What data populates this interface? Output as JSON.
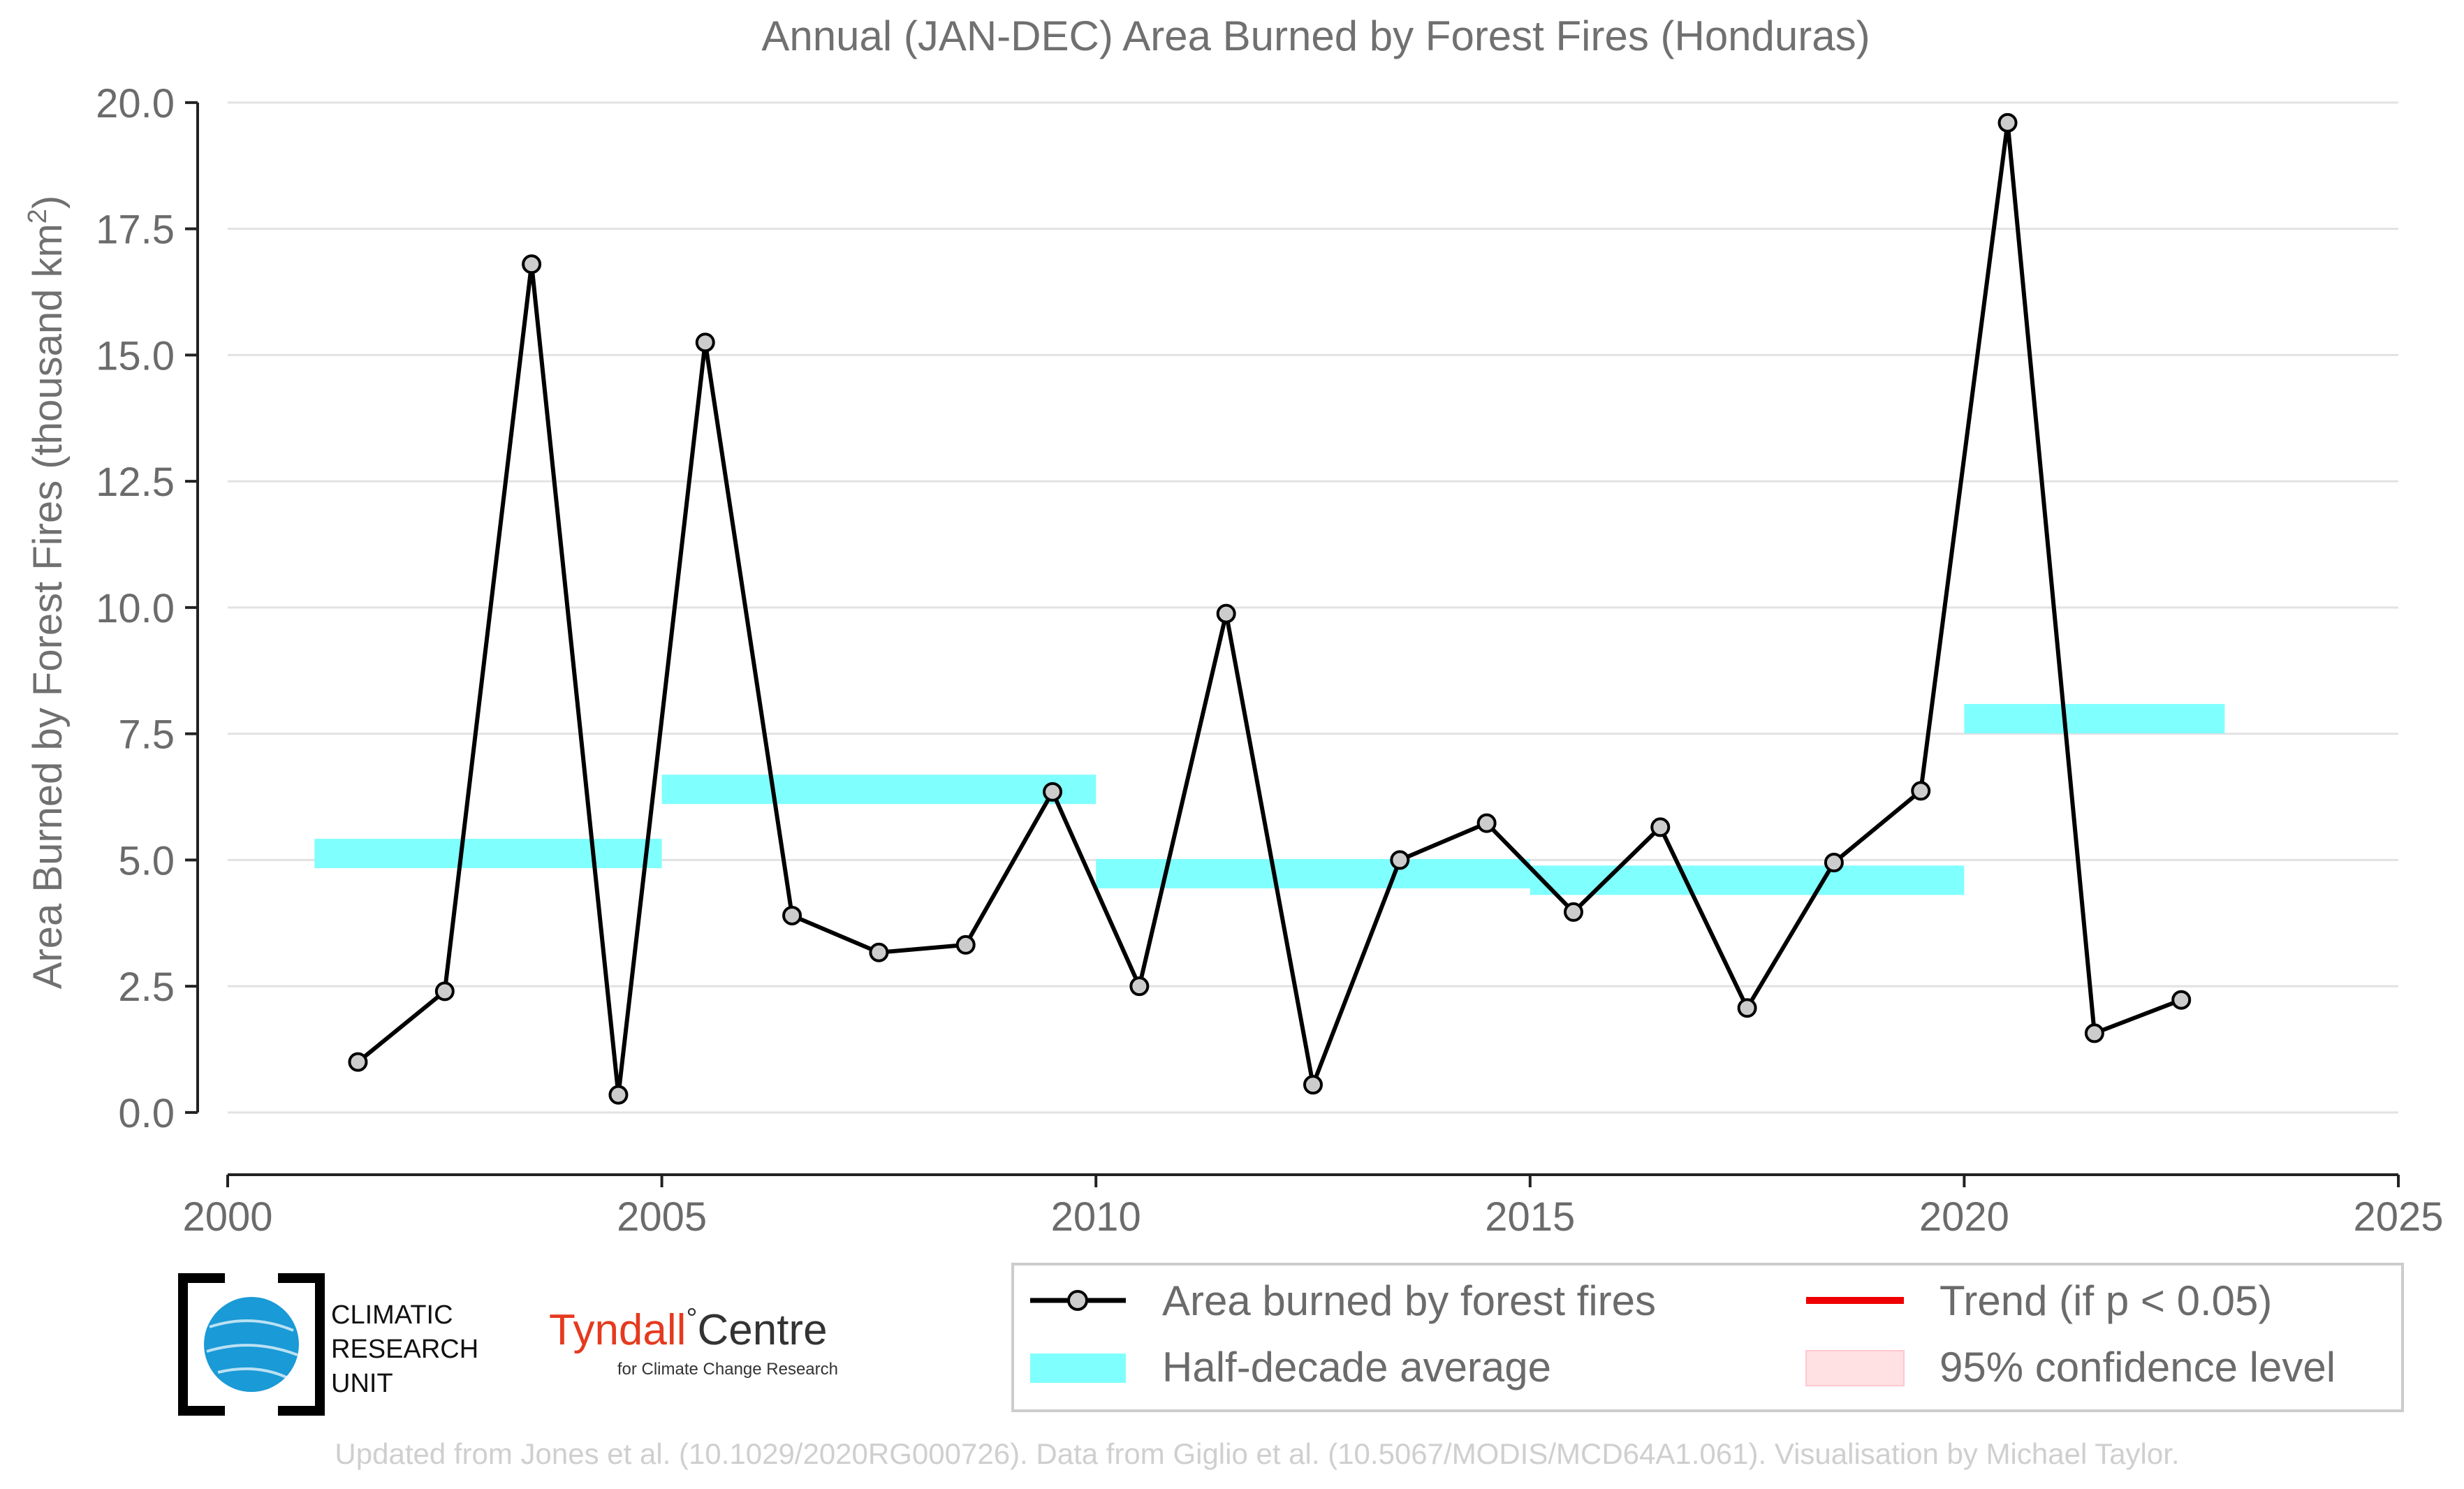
{
  "chart_data": {
    "type": "line",
    "title": "Annual (JAN-DEC) Area Burned by Forest Fires (Honduras)",
    "ylabel_main": "Area Burned by Forest Fires (thousand km",
    "ylabel_sup": "2",
    "ylabel_close": ")",
    "xlabel": "",
    "xlim": [
      2000,
      2025
    ],
    "ylim": [
      -0.9,
      20.4
    ],
    "x_ticks": [
      2000,
      2005,
      2010,
      2015,
      2020,
      2025
    ],
    "x_tick_labels": [
      "2000",
      "2005",
      "2010",
      "2015",
      "2020",
      "2025"
    ],
    "y_ticks": [
      0,
      2.5,
      5,
      7.5,
      10,
      12.5,
      15,
      17.5,
      20
    ],
    "y_tick_labels": [
      "0.0",
      "2.5",
      "5.0",
      "7.5",
      "10.0",
      "12.5",
      "15.0",
      "17.5",
      "20.0"
    ],
    "grid": "horizontal",
    "series": [
      {
        "name": "Area burned by forest fires",
        "color": "#000000",
        "marker_fill": "#cccccc",
        "x": [
          2001.5,
          2002.5,
          2003.5,
          2004.5,
          2005.5,
          2006.5,
          2007.5,
          2008.5,
          2009.5,
          2010.5,
          2011.5,
          2012.5,
          2013.5,
          2014.5,
          2015.5,
          2016.5,
          2017.5,
          2018.5,
          2019.5,
          2020.5,
          2021.5,
          2022.5
        ],
        "values": [
          1.0,
          2.4,
          16.8,
          0.35,
          15.25,
          3.9,
          3.17,
          3.32,
          6.35,
          2.5,
          9.88,
          0.55,
          5.0,
          5.73,
          3.97,
          5.65,
          2.07,
          4.95,
          6.37,
          19.6,
          1.57,
          2.23
        ]
      }
    ],
    "half_decade_average": {
      "name": "Half-decade average",
      "color": "#80ffff",
      "segments": [
        {
          "x_start": 2001,
          "x_end": 2005,
          "value": 5.13
        },
        {
          "x_start": 2005,
          "x_end": 2010,
          "value": 6.4
        },
        {
          "x_start": 2010,
          "x_end": 2015,
          "value": 4.73
        },
        {
          "x_start": 2015,
          "x_end": 2020,
          "value": 4.6
        },
        {
          "x_start": 2020,
          "x_end": 2023,
          "value": 7.8
        }
      ]
    },
    "legend": {
      "placement": "bottom-right",
      "entries": [
        {
          "label": "Area burned by forest fires",
          "kind": "line-marker",
          "color": "#000000"
        },
        {
          "label": "Trend (if p < 0.05)",
          "kind": "line",
          "color": "#ee0000"
        },
        {
          "label": "Half-decade average",
          "kind": "patch",
          "color": "#80ffff"
        },
        {
          "label": "95% confidence level",
          "kind": "patch",
          "color": "#ffe0e3"
        }
      ]
    }
  },
  "logos": {
    "cru_line1": "CLIMATIC",
    "cru_line2": "RESEARCH",
    "cru_line3": "UNIT",
    "tyndall_name": "Tyndall",
    "tyndall_degree": "°",
    "tyndall_centre": "Centre",
    "tyndall_sub": "for Climate Change Research"
  },
  "footer": {
    "credits": "Updated from Jones et al. (10.1029/2020RG000726). Data from Giglio et al. (10.5067/MODIS/MCD64A1.061). Visualisation by Michael Taylor."
  }
}
